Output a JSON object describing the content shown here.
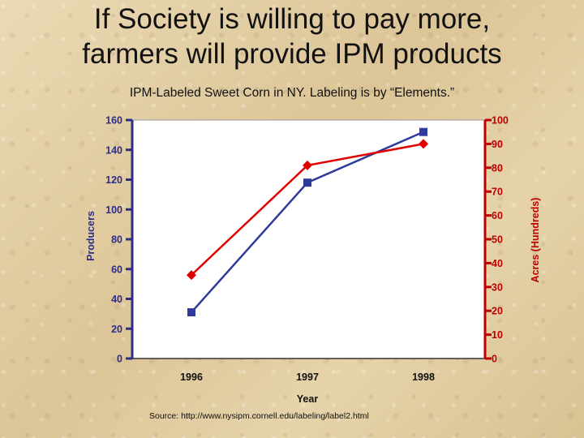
{
  "slide": {
    "title_line1": "If Society is willing to pay more,",
    "title_line2": "farmers will provide IPM products",
    "subtitle": "IPM-Labeled Sweet Corn in NY.  Labeling is by “Elements.”",
    "source": "Source: http://www.nysipm.cornell.edu/labeling/label2.html"
  },
  "colors": {
    "producers": "#2e3b9c",
    "acres": "#e00000",
    "plot_bg": "#ffffff",
    "left_axis": "#2d2d8a",
    "right_axis": "#c00000"
  },
  "chart_data": {
    "type": "line",
    "categories": [
      "1996",
      "1997",
      "1998"
    ],
    "xlabel": "Year",
    "ylabel_left": "Producers",
    "ylabel_right": "Acres     (Hundreds)",
    "ylim_left": [
      0,
      160
    ],
    "yticks_left": [
      "0",
      "20",
      "40",
      "60",
      "80",
      "100",
      "120",
      "140",
      "160"
    ],
    "ylim_right": [
      0,
      100
    ],
    "yticks_right": [
      "0",
      "10",
      "20",
      "30",
      "40",
      "50",
      "60",
      "70",
      "80",
      "90",
      "100"
    ],
    "grid": false,
    "series": [
      {
        "axis": "left",
        "marker": "square",
        "values": [
          31,
          118,
          152
        ]
      },
      {
        "axis": "right",
        "marker": "diamond",
        "values": [
          35,
          81,
          90
        ]
      }
    ]
  }
}
